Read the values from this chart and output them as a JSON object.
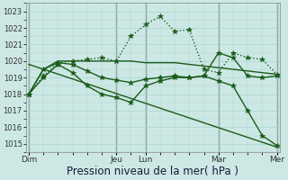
{
  "background_color": "#cde8e4",
  "grid_color": "#a8d4d0",
  "line_color": "#1a5c1a",
  "xlabel": "Pression niveau de la mer( hPa )",
  "xlabel_fontsize": 8.5,
  "ylim": [
    1014.5,
    1023.5
  ],
  "yticks": [
    1015,
    1016,
    1017,
    1018,
    1019,
    1020,
    1021,
    1022,
    1023
  ],
  "xlim": [
    -0.2,
    17.2
  ],
  "xtick_labels": [
    "Dim",
    "Jeu",
    "Lun",
    "Mar",
    "Mer"
  ],
  "xtick_positions": [
    0,
    6,
    8,
    13,
    17
  ],
  "vline_positions": [
    0,
    6,
    8,
    13,
    17
  ],
  "series": [
    {
      "x": [
        0,
        1,
        2,
        3,
        4,
        5,
        6,
        7,
        8,
        9,
        10,
        11,
        12,
        13,
        14,
        15,
        16,
        17
      ],
      "y": [
        1018.0,
        1019.1,
        1019.9,
        1020.0,
        1020.1,
        1020.2,
        1020.0,
        1021.5,
        1022.2,
        1022.7,
        1021.8,
        1021.9,
        1019.5,
        1019.3,
        1020.5,
        1020.2,
        1020.1,
        1019.2
      ],
      "linestyle": ":",
      "marker": "*",
      "markersize": 4,
      "linewidth": 1.0
    },
    {
      "x": [
        0,
        1,
        2,
        3,
        4,
        5,
        6,
        7,
        8,
        9,
        10,
        11,
        12,
        13,
        14,
        15,
        16,
        17
      ],
      "y": [
        1018.0,
        1019.5,
        1020.0,
        1020.0,
        1020.0,
        1020.0,
        1020.0,
        1020.0,
        1019.9,
        1019.9,
        1019.9,
        1019.8,
        1019.7,
        1019.6,
        1019.5,
        1019.4,
        1019.3,
        1019.2
      ],
      "linestyle": "-",
      "marker": null,
      "markersize": 0,
      "linewidth": 1.0
    },
    {
      "x": [
        0,
        1,
        2,
        3,
        4,
        5,
        6,
        7,
        8,
        9,
        10,
        11,
        12,
        13,
        14,
        15,
        16,
        17
      ],
      "y": [
        1018.0,
        1019.5,
        1019.9,
        1019.8,
        1019.4,
        1019.0,
        1018.85,
        1018.7,
        1018.9,
        1019.0,
        1019.1,
        1019.0,
        1019.1,
        1020.5,
        1020.2,
        1019.1,
        1019.0,
        1019.1
      ],
      "linestyle": "-",
      "marker": "*",
      "markersize": 4,
      "linewidth": 1.0
    },
    {
      "x": [
        0,
        1,
        2,
        3,
        4,
        5,
        6,
        7,
        8,
        9,
        10,
        11,
        12,
        13,
        14,
        15,
        16,
        17
      ],
      "y": [
        1018.0,
        1019.0,
        1019.8,
        1019.3,
        1018.5,
        1018.0,
        1017.8,
        1017.5,
        1018.5,
        1018.8,
        1019.0,
        1019.0,
        1019.1,
        1018.8,
        1018.5,
        1017.0,
        1015.5,
        1014.9
      ],
      "linestyle": "-",
      "marker": "*",
      "markersize": 4,
      "linewidth": 1.0
    },
    {
      "x": [
        0,
        17
      ],
      "y": [
        1019.8,
        1014.8
      ],
      "linestyle": "-",
      "marker": null,
      "markersize": 0,
      "linewidth": 1.0
    }
  ]
}
